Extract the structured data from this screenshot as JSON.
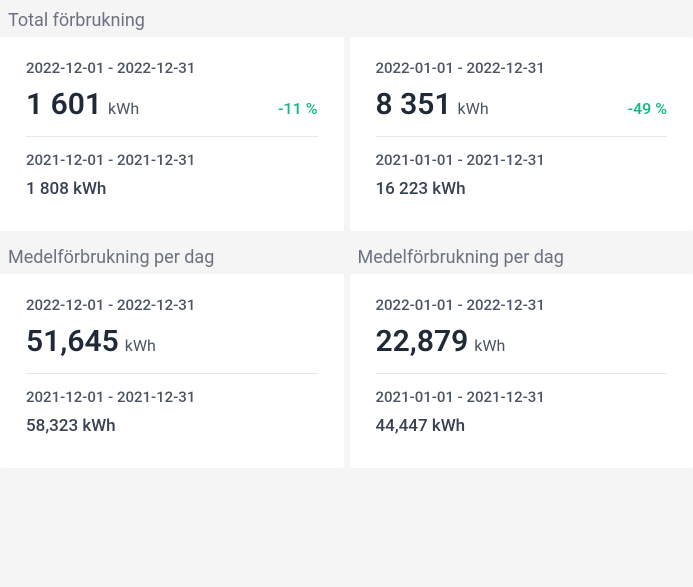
{
  "colors": {
    "background": "#f5f5f5",
    "card_bg": "#ffffff",
    "title_text": "#6b7280",
    "date_text": "#4b5563",
    "value_text": "#1f2937",
    "change_green": "#10b981",
    "divider": "#e5e7eb"
  },
  "typography": {
    "title_fontsize": 18,
    "date_fontsize": 15,
    "value_fontsize": 30,
    "unit_fontsize": 16,
    "prev_fontsize": 17
  },
  "top_left": {
    "title": "Total förbrukning",
    "current": {
      "range": "2022-12-01 - 2022-12-31",
      "value": "1 601",
      "unit": "kWh",
      "change": "-11 %",
      "change_color": "#10b981"
    },
    "previous": {
      "range": "2021-12-01 - 2021-12-31",
      "value": "1 808 kWh"
    }
  },
  "top_right": {
    "title": "",
    "current": {
      "range": "2022-01-01 - 2022-12-31",
      "value": "8 351",
      "unit": "kWh",
      "change": "-49 %",
      "change_color": "#10b981"
    },
    "previous": {
      "range": "2021-01-01 - 2021-12-31",
      "value": "16 223 kWh"
    }
  },
  "bottom_left": {
    "title": "Medelförbrukning per dag",
    "current": {
      "range": "2022-12-01 - 2022-12-31",
      "value": "51,645",
      "unit": "kWh"
    },
    "previous": {
      "range": "2021-12-01 - 2021-12-31",
      "value": "58,323 kWh"
    }
  },
  "bottom_right": {
    "title": "Medelförbrukning per dag",
    "current": {
      "range": "2022-01-01 - 2022-12-31",
      "value": "22,879",
      "unit": "kWh"
    },
    "previous": {
      "range": "2021-01-01 - 2021-12-31",
      "value": "44,447 kWh"
    }
  }
}
